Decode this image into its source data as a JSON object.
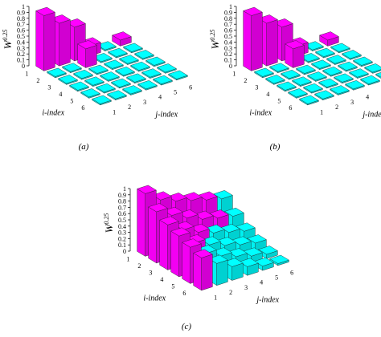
{
  "chart_data": [
    {
      "type": "bar3d",
      "panel_label": "(a)",
      "zlabel_base": "W",
      "zlabel_exp": "0.25",
      "xlabel": "i-index",
      "ylabel": "j-index",
      "i_ticks": [
        "1",
        "2",
        "3",
        "4",
        "5",
        "6"
      ],
      "j_ticks": [
        "1",
        "2",
        "3",
        "4",
        "5",
        "6"
      ],
      "z_ticks": [
        "0",
        "0.1",
        "0.2",
        "0.3",
        "0.4",
        "0.5",
        "0.6",
        "0.7",
        "0.8",
        "0.9",
        "1"
      ],
      "zlim": [
        0,
        1
      ],
      "colors": {
        "dominant": "#ff00ff",
        "other": "#00ffff"
      },
      "values": [
        [
          0,
          0,
          0,
          0,
          0,
          0
        ],
        [
          0,
          0,
          0,
          0,
          0,
          0
        ],
        [
          0,
          0,
          0,
          0,
          0,
          0
        ],
        [
          0,
          0,
          0,
          0,
          0,
          0
        ],
        [
          0,
          0,
          0,
          0,
          0,
          0
        ],
        [
          0,
          0,
          0,
          0,
          0,
          0
        ]
      ],
      "magenta_bars": [
        {
          "i": 1,
          "j": 1,
          "value": 0.93
        },
        {
          "i": 1,
          "j": 2,
          "value": 0.72
        },
        {
          "i": 1,
          "j": 3,
          "value": 0.57
        },
        {
          "i": 1,
          "j": 4,
          "value": 0.17
        },
        {
          "i": 2,
          "j": 3,
          "value": 0.32
        },
        {
          "i": 1,
          "j": 6,
          "value": 0.1
        }
      ]
    },
    {
      "type": "bar3d",
      "panel_label": "(b)",
      "zlabel_base": "W",
      "zlabel_exp": "0.25",
      "xlabel": "i-index",
      "ylabel": "j-index",
      "i_ticks": [
        "1",
        "2",
        "3",
        "4",
        "5",
        "6"
      ],
      "j_ticks": [
        "1",
        "2",
        "3",
        "4",
        "5",
        "6"
      ],
      "z_ticks": [
        "0",
        "0.1",
        "0.2",
        "0.3",
        "0.4",
        "0.5",
        "0.6",
        "0.7",
        "0.8",
        "0.9",
        "1"
      ],
      "zlim": [
        0,
        1
      ],
      "colors": {
        "dominant": "#ff00ff",
        "other": "#00ffff"
      },
      "magenta_bars": [
        {
          "i": 1,
          "j": 1,
          "value": 0.93
        },
        {
          "i": 1,
          "j": 2,
          "value": 0.72
        },
        {
          "i": 1,
          "j": 3,
          "value": 0.57
        },
        {
          "i": 1,
          "j": 4,
          "value": 0.17
        },
        {
          "i": 2,
          "j": 3,
          "value": 0.32
        },
        {
          "i": 1,
          "j": 6,
          "value": 0.1
        }
      ]
    },
    {
      "type": "bar3d",
      "panel_label": "(c)",
      "zlabel_base": "W",
      "zlabel_exp": "0.25",
      "xlabel": "i-index",
      "ylabel": "j-index",
      "i_ticks": [
        "1",
        "2",
        "3",
        "4",
        "5",
        "6"
      ],
      "j_ticks": [
        "1",
        "2",
        "3",
        "4",
        "5",
        "6"
      ],
      "z_ticks": [
        "0",
        "0.1",
        "0.2",
        "0.3",
        "0.4",
        "0.5",
        "0.6",
        "0.7",
        "0.8",
        "0.9",
        "1"
      ],
      "zlim": [
        0,
        1
      ],
      "colors": {
        "dominant": "#ff00ff",
        "other": "#00ffff"
      },
      "grid_values": [
        [
          1.0,
          0.82,
          0.72,
          0.65,
          0.58,
          0.52
        ],
        [
          0.82,
          0.68,
          0.56,
          0.46,
          0.4,
          0.35
        ],
        [
          0.72,
          0.56,
          0.44,
          0.35,
          0.28,
          0.22
        ],
        [
          0.65,
          0.46,
          0.35,
          0.26,
          0.19,
          0.14
        ],
        [
          0.58,
          0.4,
          0.28,
          0.19,
          0.12,
          0.07
        ],
        [
          0.52,
          0.35,
          0.22,
          0.14,
          0.07,
          0.03
        ]
      ],
      "magenta_cells": [
        [
          0,
          0
        ],
        [
          0,
          1
        ],
        [
          0,
          2
        ],
        [
          0,
          3
        ],
        [
          0,
          4
        ],
        [
          1,
          0
        ],
        [
          1,
          1
        ],
        [
          1,
          2
        ],
        [
          1,
          3
        ],
        [
          2,
          0
        ],
        [
          2,
          1
        ],
        [
          3,
          0
        ],
        [
          4,
          0
        ],
        [
          5,
          0
        ],
        [
          2,
          2
        ],
        [
          1,
          4
        ],
        [
          3,
          1
        ]
      ]
    }
  ]
}
